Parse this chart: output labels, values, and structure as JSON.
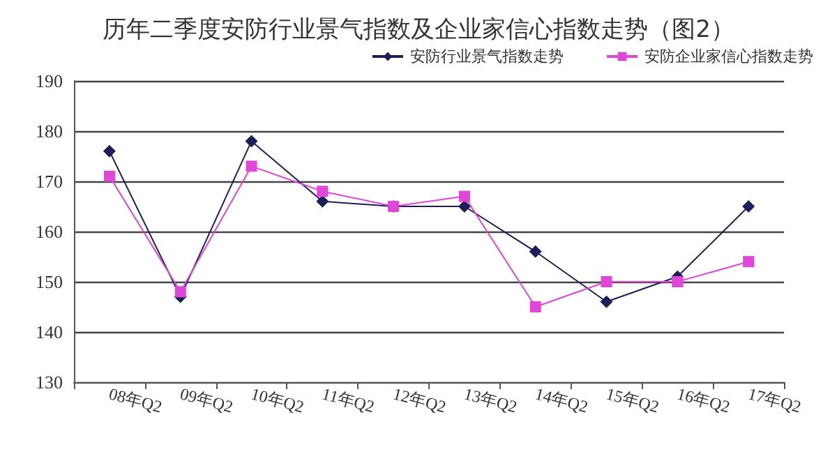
{
  "chart_data": {
    "type": "line",
    "title": "历年二季度安防行业景气指数及企业家信心指数走势（图2）",
    "categories": [
      "08年Q2",
      "09年Q2",
      "10年Q2",
      "11年Q2",
      "12年Q2",
      "13年Q2",
      "14年Q2",
      "15年Q2",
      "16年Q2",
      "17年Q2"
    ],
    "series": [
      {
        "name": "安防行业景气指数走势",
        "color": "#1c1f5a",
        "marker": "diamond",
        "values": [
          176,
          147,
          178,
          166,
          165,
          165,
          156,
          146,
          151,
          165
        ]
      },
      {
        "name": "安防企业家信心指数走势",
        "color": "#e046d8",
        "marker": "square",
        "values": [
          171,
          148,
          173,
          168,
          165,
          167,
          145,
          150,
          150,
          154
        ]
      }
    ],
    "ylim": [
      130,
      190
    ],
    "yticks": [
      130,
      140,
      150,
      160,
      170,
      180,
      190
    ],
    "grid": "y",
    "legend": "top right"
  }
}
